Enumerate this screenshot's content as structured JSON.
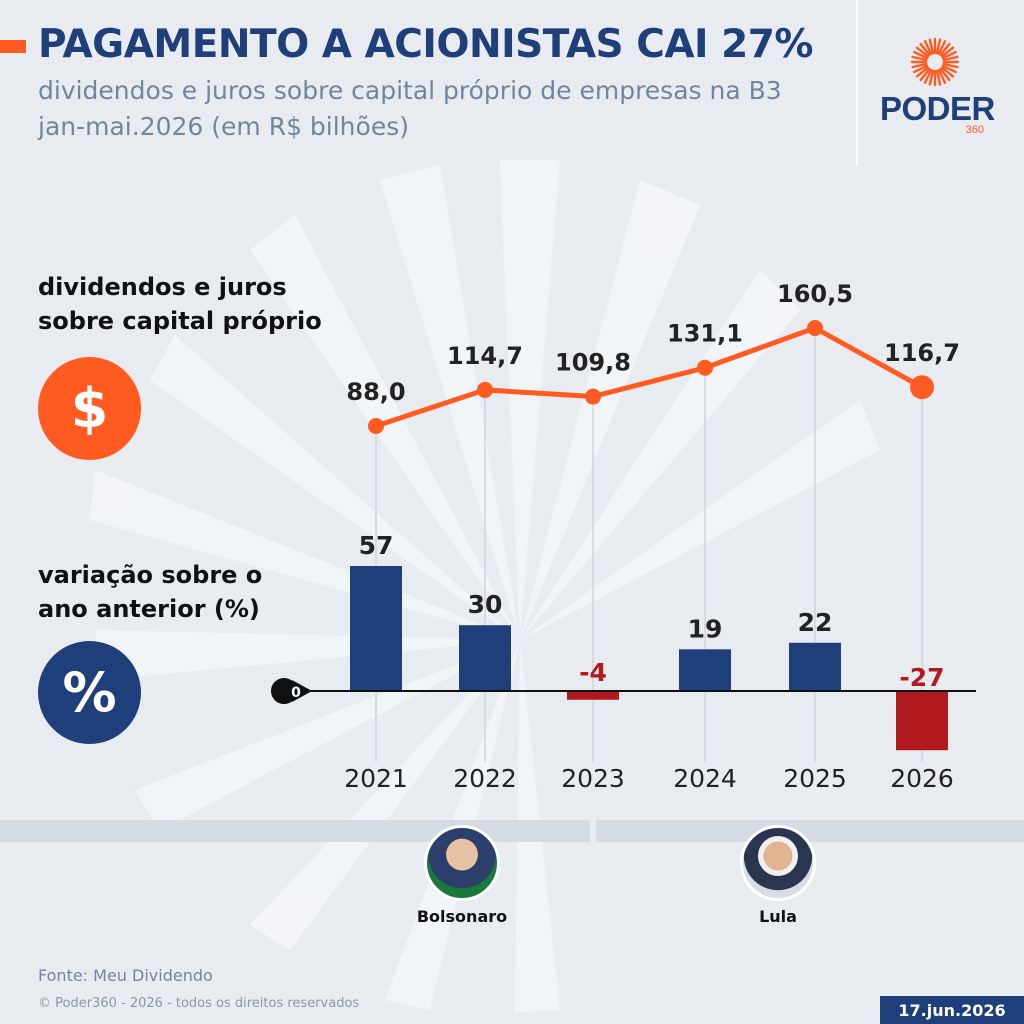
{
  "header": {
    "title": "PAGAMENTO A ACIONISTAS CAI 27%",
    "subtitle_line1": "dividendos e juros sobre capital próprio de empresas na B3",
    "subtitle_line2": "jan-mai.2026 (em R$ bilhões)"
  },
  "logo": {
    "text": "PODER",
    "sub": "360"
  },
  "sections": {
    "line_label_1": "dividendos e juros",
    "line_label_2": "sobre capital próprio",
    "bar_label_1": "variação sobre o",
    "bar_label_2": "ano anterior (%)",
    "dollar_symbol": "$",
    "percent_symbol": "%"
  },
  "colors": {
    "orange": "#ff5a1f",
    "navy": "#1f3f7a",
    "red": "#b0191e"
  },
  "chart_data": [
    {
      "type": "line",
      "x": [
        "2021",
        "2022",
        "2023",
        "2024",
        "2025",
        "2026"
      ],
      "series": [
        {
          "values": [
            88.0,
            114.7,
            109.8,
            131.1,
            160.5,
            116.7
          ]
        }
      ],
      "labels": [
        "88,0",
        "114,7",
        "109,8",
        "131,1",
        "160,5",
        "116,7"
      ]
    },
    {
      "type": "bar",
      "categories": [
        "2021",
        "2022",
        "2023",
        "2024",
        "2025",
        "2026"
      ],
      "values": [
        57,
        30,
        -4,
        19,
        22,
        -27
      ],
      "labels": [
        "57",
        "30",
        "-4",
        "19",
        "22",
        "-27"
      ],
      "zero_label": "0"
    }
  ],
  "people": [
    {
      "name": "Bolsonaro"
    },
    {
      "name": "Lula"
    }
  ],
  "footer": {
    "source": "Fonte: Meu Dividendo",
    "copyright": "© Poder360 - 2026 - todos os direitos reservados",
    "date": "17.jun.2026"
  }
}
